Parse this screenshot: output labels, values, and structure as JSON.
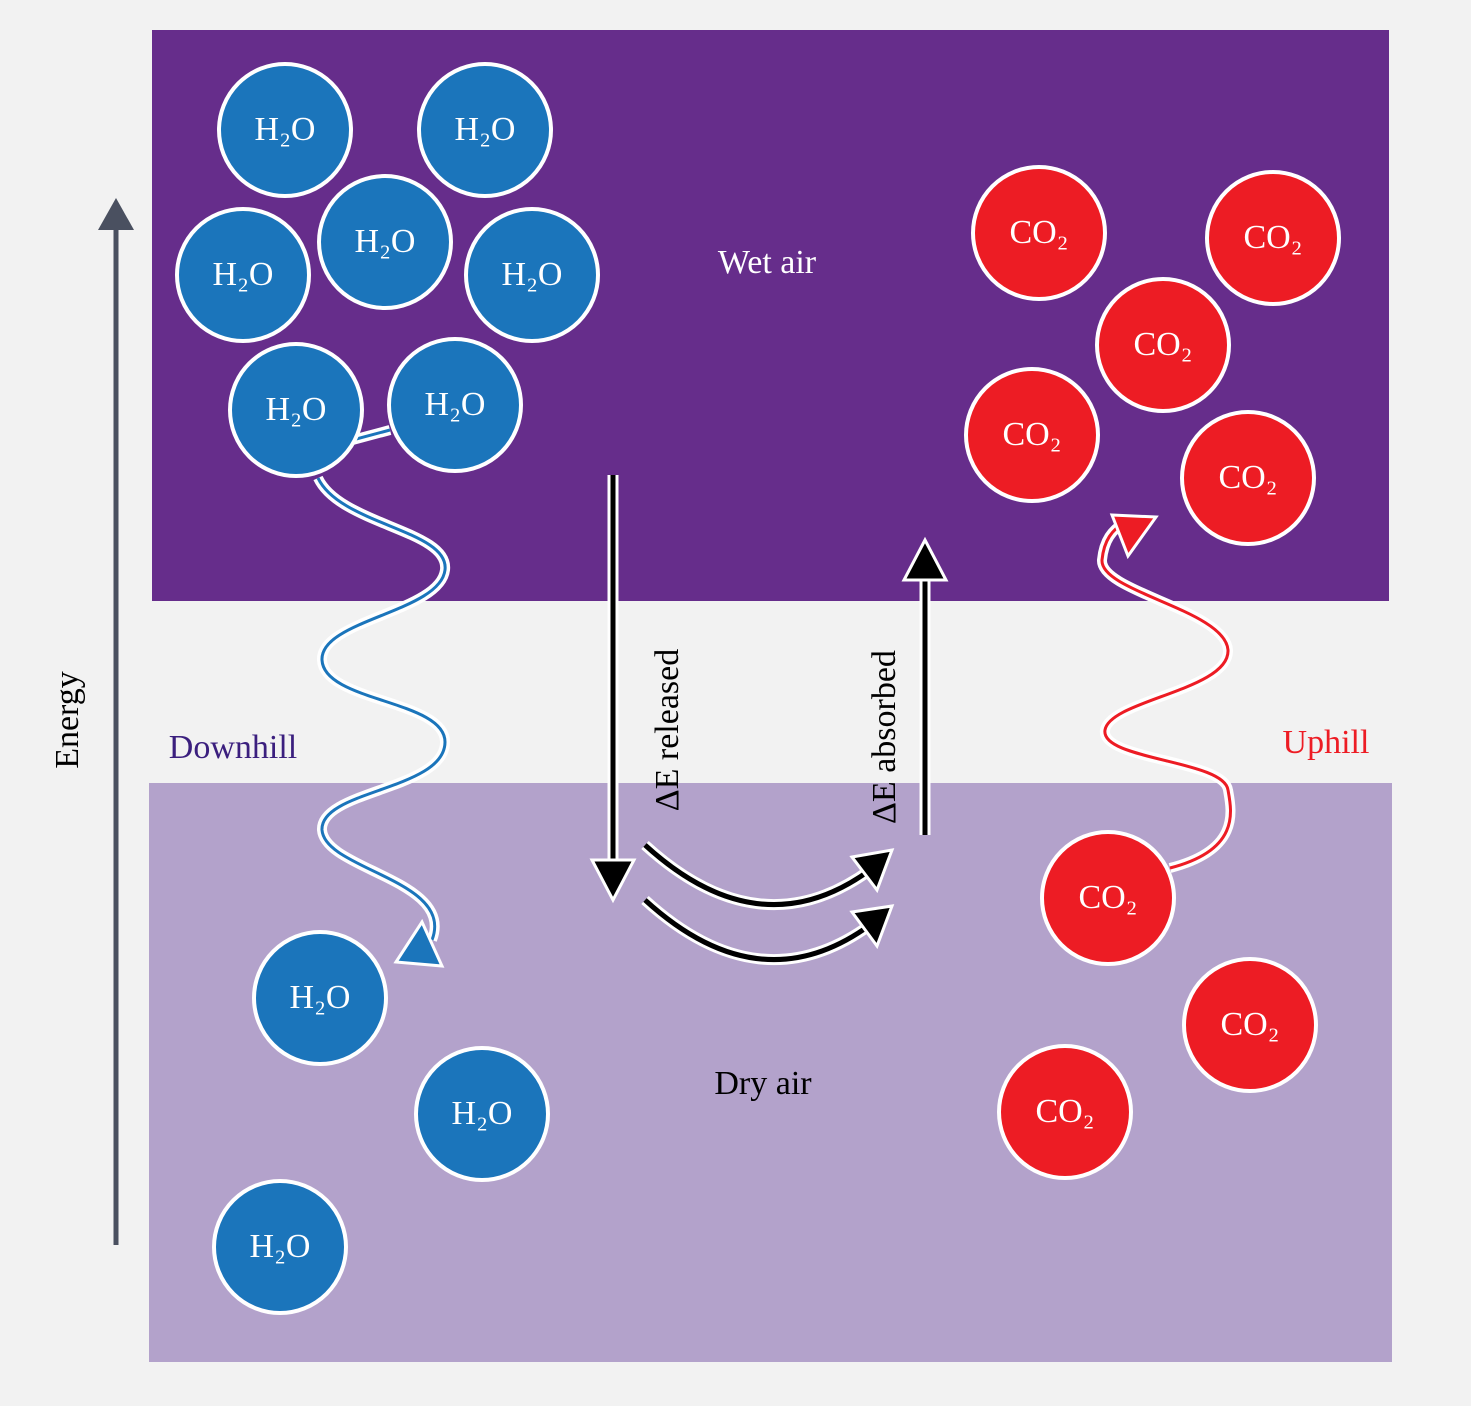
{
  "regions": {
    "wet": "Wet air",
    "dry": "Dry air"
  },
  "axis": {
    "label": "Energy"
  },
  "paths": {
    "downhill": "Downhill",
    "uphill": "Uphill"
  },
  "energy": {
    "released": "ΔE released",
    "absorbed": "ΔE absorbed"
  },
  "molecules": [
    {
      "label": "H₂O"
    },
    {
      "label": "H₂O"
    },
    {
      "label": "H₂O"
    },
    {
      "label": "H₂O"
    },
    {
      "label": "H₂O"
    },
    {
      "label": "H₂O"
    },
    {
      "label": "H₂O"
    },
    {
      "label": "H₂O"
    },
    {
      "label": "H₂O"
    },
    {
      "label": "H₂O"
    },
    {
      "label": "CO₂"
    },
    {
      "label": "CO₂"
    },
    {
      "label": "CO₂"
    },
    {
      "label": "CO₂"
    },
    {
      "label": "CO₂"
    },
    {
      "label": "CO₂"
    },
    {
      "label": "CO₂"
    },
    {
      "label": "CO₂"
    }
  ]
}
